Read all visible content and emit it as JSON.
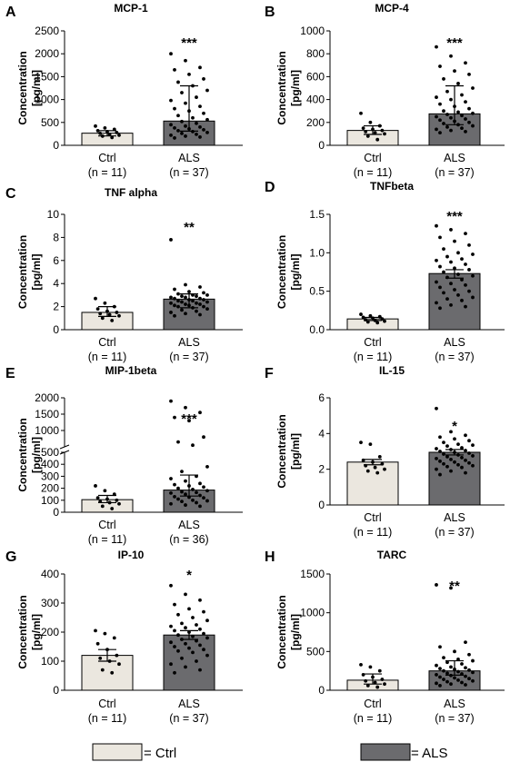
{
  "colors": {
    "ctrl_fill": "#ebe7df",
    "als_fill": "#6b6b6e",
    "edge": "#000000",
    "dot": "#000000"
  },
  "legend": {
    "ctrl_label": "= Ctrl",
    "als_label": "= ALS"
  },
  "chart_data": [
    {
      "type": "bar",
      "panel": "A",
      "title": "MCP-1",
      "ylabel": "Concentration [pg/ml]",
      "ylim": [
        0,
        2500
      ],
      "yticks": [
        0,
        500,
        1000,
        1500,
        2000,
        2500
      ],
      "categories": [
        "Ctrl",
        "ALS"
      ],
      "n_labels": [
        "(n = 11)",
        "(n = 37)"
      ],
      "values": [
        265,
        530
      ],
      "error_lower": [
        205,
        310
      ],
      "error_upper": [
        320,
        1300
      ],
      "significance": "***",
      "points": [
        [
          420,
          380,
          350,
          320,
          300,
          280,
          260,
          240,
          220,
          200,
          170
        ],
        [
          2000,
          1850,
          1700,
          1650,
          1550,
          1450,
          1380,
          1300,
          1200,
          1150,
          1050,
          980,
          920,
          850,
          800,
          750,
          700,
          650,
          600,
          560,
          520,
          480,
          450,
          420,
          400,
          380,
          360,
          340,
          320,
          300,
          280,
          260,
          240,
          220,
          200,
          180,
          160
        ]
      ]
    },
    {
      "type": "bar",
      "panel": "B",
      "title": "MCP-4",
      "ylabel": "Concentration [pg/ml]",
      "ylim": [
        0,
        1000
      ],
      "yticks": [
        0,
        200,
        400,
        600,
        800,
        1000
      ],
      "categories": [
        "Ctrl",
        "ALS"
      ],
      "n_labels": [
        "(n = 11)",
        "(n = 37)"
      ],
      "values": [
        130,
        275
      ],
      "error_lower": [
        95,
        180
      ],
      "error_upper": [
        170,
        520
      ],
      "significance": "***",
      "points": [
        [
          280,
          200,
          170,
          150,
          140,
          130,
          120,
          110,
          100,
          80,
          50
        ],
        [
          860,
          780,
          720,
          690,
          650,
          620,
          580,
          540,
          500,
          470,
          440,
          420,
          400,
          380,
          360,
          340,
          320,
          300,
          290,
          280,
          270,
          260,
          250,
          240,
          230,
          220,
          210,
          200,
          190,
          180,
          170,
          160,
          150,
          140,
          130,
          120,
          110
        ]
      ]
    },
    {
      "type": "bar",
      "panel": "C",
      "title": "TNF alpha",
      "ylabel": "Concentration [pg/ml]",
      "ylim": [
        0,
        10
      ],
      "yticks": [
        0,
        2,
        4,
        6,
        8,
        10
      ],
      "categories": [
        "Ctrl",
        "ALS"
      ],
      "n_labels": [
        "(n = 11)",
        "(n = 37)"
      ],
      "values": [
        1.5,
        2.65
      ],
      "error_lower": [
        1.15,
        1.9
      ],
      "error_upper": [
        2.0,
        3.1
      ],
      "significance": "**",
      "points": [
        [
          2.7,
          2.3,
          2.0,
          1.8,
          1.6,
          1.5,
          1.4,
          1.3,
          1.2,
          1.0,
          0.8
        ],
        [
          7.8,
          3.9,
          3.7,
          3.5,
          3.3,
          3.2,
          3.1,
          3.0,
          3.0,
          2.9,
          2.9,
          2.8,
          2.8,
          2.7,
          2.7,
          2.6,
          2.6,
          2.5,
          2.5,
          2.4,
          2.4,
          2.3,
          2.3,
          2.2,
          2.2,
          2.1,
          2.1,
          2.0,
          2.0,
          1.9,
          1.8,
          1.7,
          1.6,
          1.5,
          1.4,
          1.3,
          1.2
        ]
      ]
    },
    {
      "type": "bar",
      "panel": "D",
      "title": "TNFbeta",
      "ylabel": "Concentration [pg/ml]",
      "ylim": [
        0,
        1.5
      ],
      "yticks": [
        0.0,
        0.5,
        1.0,
        1.5
      ],
      "ytick_labels": [
        "0.0",
        "0.5",
        "1.0",
        "1.5"
      ],
      "categories": [
        "Ctrl",
        "ALS"
      ],
      "n_labels": [
        "(n = 11)",
        "(n = 37)"
      ],
      "values": [
        0.14,
        0.73
      ],
      "error_lower": [
        0.12,
        0.67
      ],
      "error_upper": [
        0.16,
        0.78
      ],
      "significance": "***",
      "points": [
        [
          0.2,
          0.18,
          0.17,
          0.16,
          0.15,
          0.14,
          0.13,
          0.12,
          0.11,
          0.1,
          0.09
        ],
        [
          1.35,
          1.3,
          1.25,
          1.2,
          1.15,
          1.1,
          1.05,
          1.0,
          0.98,
          0.95,
          0.92,
          0.9,
          0.88,
          0.85,
          0.82,
          0.8,
          0.78,
          0.75,
          0.72,
          0.7,
          0.68,
          0.65,
          0.62,
          0.6,
          0.58,
          0.55,
          0.52,
          0.5,
          0.48,
          0.45,
          0.42,
          0.4,
          0.38,
          0.35,
          0.32,
          0.3,
          0.28
        ]
      ]
    },
    {
      "type": "bar",
      "panel": "E",
      "title": "MIP-1beta",
      "ylabel": "Concentration [pg/ml]",
      "ylim": [
        0,
        2000
      ],
      "broken_axis": true,
      "yticks": [
        0,
        100,
        200,
        300,
        400,
        500,
        1000,
        1500,
        2000
      ],
      "categories": [
        "Ctrl",
        "ALS"
      ],
      "n_labels": [
        "(n = 11)",
        "(n = 36)"
      ],
      "values": [
        105,
        185
      ],
      "error_lower": [
        80,
        135
      ],
      "error_upper": [
        140,
        310
      ],
      "significance": "***",
      "points": [
        [
          220,
          180,
          150,
          120,
          110,
          100,
          90,
          80,
          70,
          50,
          30
        ],
        [
          1900,
          1700,
          1550,
          1400,
          1300,
          800,
          650,
          550,
          380,
          340,
          300,
          280,
          260,
          240,
          230,
          220,
          210,
          200,
          190,
          180,
          170,
          165,
          160,
          150,
          140,
          130,
          125,
          120,
          110,
          100,
          95,
          90,
          80,
          70,
          60,
          50
        ]
      ]
    },
    {
      "type": "bar",
      "panel": "F",
      "title": "IL-15",
      "ylabel": "Concentration [pg/ml]",
      "ylim": [
        0,
        6
      ],
      "yticks": [
        0,
        2,
        4,
        6
      ],
      "categories": [
        "Ctrl",
        "ALS"
      ],
      "n_labels": [
        "(n = 11)",
        "(n = 37)"
      ],
      "values": [
        2.4,
        2.95
      ],
      "error_lower": [
        2.25,
        2.8
      ],
      "error_upper": [
        2.55,
        3.1
      ],
      "significance": "*",
      "points": [
        [
          3.5,
          3.4,
          2.7,
          2.5,
          2.4,
          2.3,
          2.2,
          2.1,
          2.0,
          1.9,
          1.8
        ],
        [
          5.4,
          4.1,
          3.9,
          3.8,
          3.7,
          3.6,
          3.5,
          3.4,
          3.35,
          3.3,
          3.2,
          3.15,
          3.1,
          3.05,
          3.0,
          2.95,
          2.9,
          2.85,
          2.8,
          2.75,
          2.7,
          2.65,
          2.6,
          2.55,
          2.5,
          2.45,
          2.4,
          2.35,
          2.3,
          2.25,
          2.2,
          2.15,
          2.1,
          2.0,
          1.9,
          1.8,
          1.7
        ]
      ]
    },
    {
      "type": "bar",
      "panel": "G",
      "title": "IP-10",
      "ylabel": "Concentration [pg/ml]",
      "ylim": [
        0,
        400
      ],
      "yticks": [
        0,
        100,
        200,
        300,
        400
      ],
      "categories": [
        "Ctrl",
        "ALS"
      ],
      "n_labels": [
        "(n = 11)",
        "(n = 37)"
      ],
      "values": [
        120,
        190
      ],
      "error_lower": [
        100,
        175
      ],
      "error_upper": [
        140,
        205
      ],
      "significance": "*",
      "points": [
        [
          205,
          195,
          180,
          160,
          140,
          120,
          110,
          100,
          90,
          70,
          60
        ],
        [
          360,
          330,
          310,
          295,
          280,
          270,
          260,
          250,
          240,
          230,
          225,
          220,
          215,
          210,
          205,
          200,
          195,
          190,
          185,
          180,
          175,
          170,
          165,
          160,
          155,
          150,
          145,
          140,
          135,
          130,
          120,
          110,
          100,
          90,
          80,
          70,
          60
        ]
      ]
    },
    {
      "type": "bar",
      "panel": "H",
      "title": "TARC",
      "ylabel": "Concentration [pg/ml]",
      "ylim": [
        0,
        1500
      ],
      "yticks": [
        0,
        500,
        1000,
        1500
      ],
      "categories": [
        "Ctrl",
        "ALS"
      ],
      "n_labels": [
        "(n = 11)",
        "(n = 37)"
      ],
      "values": [
        130,
        250
      ],
      "error_lower": [
        80,
        195
      ],
      "error_upper": [
        210,
        380
      ],
      "significance": "**",
      "points": [
        [
          330,
          300,
          250,
          200,
          170,
          140,
          120,
          100,
          80,
          60,
          40
        ],
        [
          1360,
          1320,
          620,
          560,
          500,
          460,
          420,
          400,
          380,
          360,
          340,
          320,
          300,
          290,
          280,
          270,
          260,
          250,
          240,
          230,
          220,
          210,
          200,
          190,
          180,
          170,
          160,
          150,
          140,
          130,
          120,
          110,
          100,
          90,
          80,
          70,
          60
        ]
      ]
    }
  ]
}
